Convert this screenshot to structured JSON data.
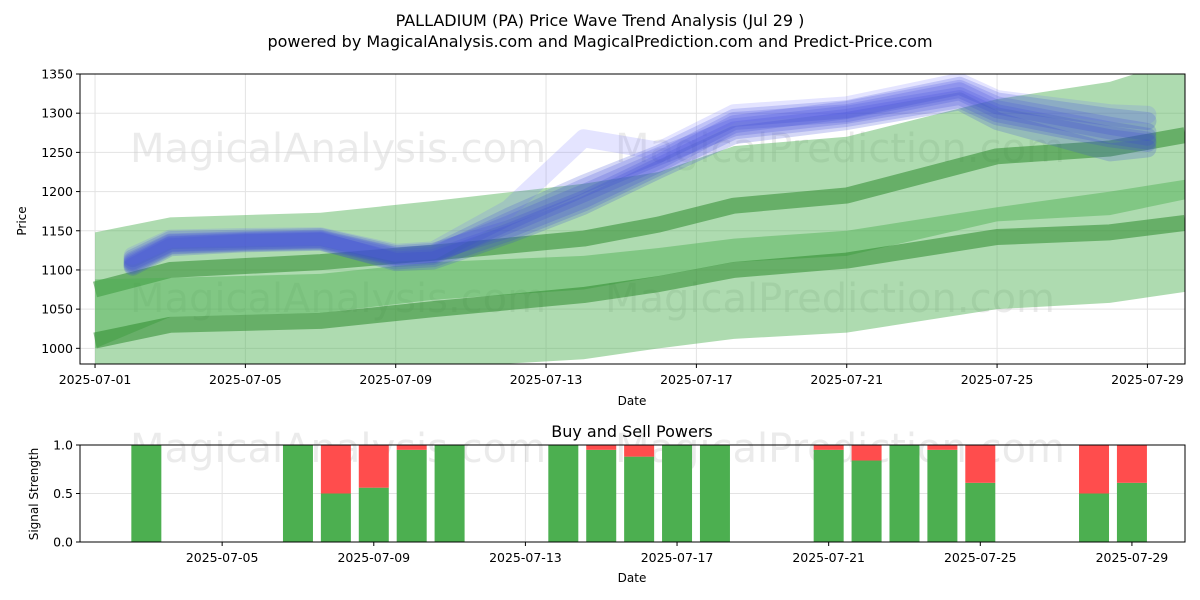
{
  "header": {
    "title": "PALLADIUM (PA) Price Wave Trend Analysis (Jul 29 )",
    "subtitle": "powered by MagicalAnalysis.com and MagicalPrediction.com and Predict-Price.com"
  },
  "watermarks": [
    "MagicalAnalysis.com",
    "MagicalPrediction.com"
  ],
  "colors": {
    "band_fill": "#4caf50",
    "band_line": "#2e8b2e",
    "wave": "#3b4bd6",
    "wave_light": "#6b6bff",
    "buy": "#4caf50",
    "sell": "#ff4d4d"
  },
  "chart_data": [
    {
      "type": "area",
      "title": "",
      "xlabel": "Date",
      "ylabel": "Price",
      "xlim": [
        "2025-07-01",
        "2025-07-30"
      ],
      "ylim": [
        980,
        1350
      ],
      "x_ticks": [
        "2025-07-01",
        "2025-07-05",
        "2025-07-09",
        "2025-07-13",
        "2025-07-17",
        "2025-07-21",
        "2025-07-25",
        "2025-07-29"
      ],
      "y_ticks": [
        1000,
        1050,
        1100,
        1150,
        1200,
        1250,
        1300,
        1350
      ],
      "grid": true,
      "band_dates": [
        "2025-07-01",
        "2025-07-03",
        "2025-07-07",
        "2025-07-10",
        "2025-07-14",
        "2025-07-16",
        "2025-07-18",
        "2025-07-21",
        "2025-07-25",
        "2025-07-28",
        "2025-07-30"
      ],
      "bands": [
        {
          "upper": [
            1148,
            1167,
            1173,
            1188,
            1210,
            1225,
            1258,
            1270,
            1318,
            1340,
            1370
          ],
          "center": [
            1075,
            1100,
            1110,
            1122,
            1140,
            1158,
            1182,
            1195,
            1245,
            1255,
            1272
          ],
          "lower": [
            1000,
            1040,
            1045,
            1062,
            1075,
            1092,
            1110,
            1118,
            1162,
            1170,
            1190
          ]
        },
        {
          "upper": [
            1088,
            1090,
            1095,
            1110,
            1118,
            1128,
            1140,
            1150,
            1180,
            1200,
            1215
          ],
          "center": [
            1010,
            1030,
            1035,
            1050,
            1068,
            1082,
            1100,
            1112,
            1142,
            1148,
            1160
          ],
          "lower": [
            972,
            968,
            972,
            975,
            986,
            1000,
            1012,
            1020,
            1050,
            1058,
            1072
          ]
        }
      ],
      "wave_dates": [
        "2025-07-02",
        "2025-07-03",
        "2025-07-05",
        "2025-07-07",
        "2025-07-09",
        "2025-07-10",
        "2025-07-12",
        "2025-07-14",
        "2025-07-16",
        "2025-07-18",
        "2025-07-21",
        "2025-07-24",
        "2025-07-25",
        "2025-07-28",
        "2025-07-29"
      ],
      "waves": [
        [
          1112,
          1135,
          1138,
          1140,
          1118,
          1120,
          1158,
          1198,
          1240,
          1290,
          1300,
          1328,
          1305,
          1278,
          1270
        ],
        [
          1108,
          1132,
          1136,
          1138,
          1115,
          1118,
          1162,
          1205,
          1245,
          1282,
          1298,
          1322,
          1300,
          1272,
          1265
        ],
        [
          1115,
          1138,
          1140,
          1142,
          1120,
          1123,
          1152,
          1190,
          1236,
          1286,
          1304,
          1331,
          1310,
          1284,
          1276
        ],
        [
          1104,
          1129,
          1134,
          1136,
          1112,
          1115,
          1148,
          1186,
          1232,
          1278,
          1294,
          1318,
          1296,
          1268,
          1262
        ],
        [
          1110,
          1134,
          1137,
          1139,
          1117,
          1121,
          1168,
          1210,
          1248,
          1294,
          1305,
          1335,
          1315,
          1295,
          1290
        ],
        [
          1118,
          1140,
          1142,
          1143,
          1122,
          1125,
          1178,
          1268,
          1252,
          1300,
          1310,
          1340,
          1318,
          1300,
          1298
        ],
        [
          1106,
          1131,
          1135,
          1137,
          1110,
          1112,
          1145,
          1182,
          1228,
          1272,
          1290,
          1315,
          1290,
          1250,
          1255
        ]
      ]
    },
    {
      "type": "bar",
      "title": "Buy and Sell Powers",
      "xlabel": "Date",
      "ylabel": "Signal Strength",
      "ylim": [
        0,
        1
      ],
      "y_ticks": [
        "0.0",
        "0.5",
        "1.0"
      ],
      "x_ticks": [
        "2025-07-05",
        "2025-07-09",
        "2025-07-13",
        "2025-07-17",
        "2025-07-21",
        "2025-07-25",
        "2025-07-29"
      ],
      "grid": true,
      "dates": [
        "2025-07-03",
        "2025-07-07",
        "2025-07-08",
        "2025-07-09",
        "2025-07-10",
        "2025-07-11",
        "2025-07-14",
        "2025-07-15",
        "2025-07-16",
        "2025-07-17",
        "2025-07-18",
        "2025-07-21",
        "2025-07-22",
        "2025-07-23",
        "2025-07-24",
        "2025-07-25",
        "2025-07-28",
        "2025-07-29"
      ],
      "series": [
        {
          "name": "Buy",
          "values": [
            1.0,
            1.0,
            0.5,
            0.56,
            0.95,
            1.0,
            1.0,
            0.95,
            0.88,
            1.0,
            1.0,
            0.95,
            0.84,
            1.0,
            0.95,
            0.61,
            0.5,
            0.61
          ]
        },
        {
          "name": "Sell",
          "values": [
            0.0,
            0.0,
            0.5,
            0.44,
            0.05,
            0.0,
            0.0,
            0.05,
            0.12,
            0.0,
            0.0,
            0.05,
            0.16,
            0.0,
            0.05,
            0.39,
            0.5,
            0.39
          ]
        }
      ]
    }
  ]
}
